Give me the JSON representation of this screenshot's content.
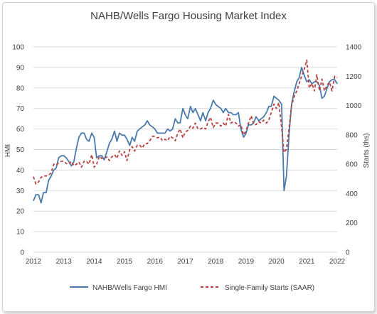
{
  "chart_data": {
    "type": "line",
    "title": "NAHB/Wells Fargo Housing Market Index",
    "ylabel": "HMI",
    "y2label": "Starts (ths)",
    "xlabel": "",
    "xlim": [
      2012,
      2022
    ],
    "ylim": [
      0,
      100
    ],
    "y2lim": [
      0,
      1400
    ],
    "x_ticks": [
      "2012",
      "2013",
      "2014",
      "2015",
      "2016",
      "2017",
      "2018",
      "2019",
      "2020",
      "2021",
      "2022"
    ],
    "y_ticks": [
      "0",
      "10",
      "20",
      "30",
      "40",
      "50",
      "60",
      "70",
      "80",
      "90",
      "100"
    ],
    "y2_ticks": [
      "0",
      "200",
      "400",
      "600",
      "800",
      "1000",
      "1200",
      "1400"
    ],
    "grid": true,
    "legend_position": "bottom",
    "series": [
      {
        "name": "NAHB/Wells Fargo HMI",
        "axis": "left",
        "color": "#4a7aad",
        "style": "solid",
        "x": [
          2012.0,
          2012.08,
          2012.17,
          2012.25,
          2012.33,
          2012.42,
          2012.5,
          2012.58,
          2012.67,
          2012.75,
          2012.83,
          2012.92,
          2013.0,
          2013.08,
          2013.17,
          2013.25,
          2013.33,
          2013.42,
          2013.5,
          2013.58,
          2013.67,
          2013.75,
          2013.83,
          2013.92,
          2014.0,
          2014.08,
          2014.17,
          2014.25,
          2014.33,
          2014.42,
          2014.5,
          2014.58,
          2014.67,
          2014.75,
          2014.83,
          2014.92,
          2015.0,
          2015.08,
          2015.17,
          2015.25,
          2015.33,
          2015.42,
          2015.5,
          2015.58,
          2015.67,
          2015.75,
          2015.83,
          2015.92,
          2016.0,
          2016.08,
          2016.17,
          2016.25,
          2016.33,
          2016.42,
          2016.5,
          2016.58,
          2016.67,
          2016.75,
          2016.83,
          2016.92,
          2017.0,
          2017.08,
          2017.17,
          2017.25,
          2017.33,
          2017.42,
          2017.5,
          2017.58,
          2017.67,
          2017.75,
          2017.83,
          2017.92,
          2018.0,
          2018.08,
          2018.17,
          2018.25,
          2018.33,
          2018.42,
          2018.5,
          2018.58,
          2018.67,
          2018.75,
          2018.83,
          2018.92,
          2019.0,
          2019.08,
          2019.17,
          2019.25,
          2019.33,
          2019.42,
          2019.5,
          2019.58,
          2019.67,
          2019.75,
          2019.83,
          2019.92,
          2020.0,
          2020.08,
          2020.17,
          2020.25,
          2020.33,
          2020.42,
          2020.5,
          2020.58,
          2020.67,
          2020.75,
          2020.83,
          2020.92,
          2021.0,
          2021.08,
          2021.17,
          2021.25,
          2021.33,
          2021.42,
          2021.5,
          2021.58,
          2021.67,
          2021.75,
          2021.83,
          2021.92,
          2022.0
        ],
        "values": [
          25,
          28,
          28,
          24,
          29,
          29,
          35,
          37,
          40,
          41,
          46,
          47,
          47,
          46,
          44,
          42,
          44,
          51,
          56,
          58,
          58,
          55,
          54,
          58,
          56,
          46,
          47,
          47,
          45,
          49,
          53,
          55,
          59,
          54,
          58,
          57,
          57,
          55,
          52,
          56,
          54,
          59,
          60,
          61,
          62,
          64,
          62,
          61,
          60,
          58,
          58,
          58,
          58,
          60,
          59,
          60,
          65,
          63,
          63,
          70,
          67,
          65,
          71,
          68,
          70,
          67,
          64,
          68,
          64,
          68,
          70,
          74,
          72,
          71,
          70,
          68,
          70,
          68,
          68,
          67,
          67,
          68,
          60,
          56,
          58,
          62,
          62,
          63,
          66,
          64,
          65,
          66,
          68,
          71,
          71,
          76,
          75,
          74,
          72,
          30,
          37,
          58,
          72,
          78,
          83,
          85,
          90,
          86,
          83,
          84,
          82,
          83,
          83,
          81,
          75,
          76,
          80,
          83,
          84,
          84,
          82
        ]
      },
      {
        "name": "Single-Family Starts (SAAR)",
        "axis": "right",
        "color": "#b8413f",
        "style": "dashed",
        "x": [
          2012.0,
          2012.08,
          2012.17,
          2012.25,
          2012.33,
          2012.42,
          2012.5,
          2012.58,
          2012.67,
          2012.75,
          2012.83,
          2012.92,
          2013.0,
          2013.08,
          2013.17,
          2013.25,
          2013.33,
          2013.42,
          2013.5,
          2013.58,
          2013.67,
          2013.75,
          2013.83,
          2013.92,
          2014.0,
          2014.08,
          2014.17,
          2014.25,
          2014.33,
          2014.42,
          2014.5,
          2014.58,
          2014.67,
          2014.75,
          2014.83,
          2014.92,
          2015.0,
          2015.08,
          2015.17,
          2015.25,
          2015.33,
          2015.42,
          2015.5,
          2015.58,
          2015.67,
          2015.75,
          2015.83,
          2015.92,
          2016.0,
          2016.08,
          2016.17,
          2016.25,
          2016.33,
          2016.42,
          2016.5,
          2016.58,
          2016.67,
          2016.75,
          2016.83,
          2016.92,
          2017.0,
          2017.08,
          2017.17,
          2017.25,
          2017.33,
          2017.42,
          2017.5,
          2017.58,
          2017.67,
          2017.75,
          2017.83,
          2017.92,
          2018.0,
          2018.08,
          2018.17,
          2018.25,
          2018.33,
          2018.42,
          2018.5,
          2018.58,
          2018.67,
          2018.75,
          2018.83,
          2018.92,
          2019.0,
          2019.08,
          2019.17,
          2019.25,
          2019.33,
          2019.42,
          2019.5,
          2019.58,
          2019.67,
          2019.75,
          2019.83,
          2019.92,
          2020.0,
          2020.08,
          2020.17,
          2020.25,
          2020.33,
          2020.42,
          2020.5,
          2020.58,
          2020.67,
          2020.75,
          2020.83,
          2020.92,
          2021.0,
          2021.08,
          2021.17,
          2021.25,
          2021.33,
          2021.42,
          2021.5,
          2021.58,
          2021.67,
          2021.75,
          2021.83,
          2021.92,
          2022.0
        ],
        "values": [
          515,
          465,
          480,
          510,
          520,
          520,
          525,
          540,
          600,
          595,
          610,
          620,
          620,
          605,
          600,
          620,
          590,
          600,
          615,
          580,
          620,
          620,
          600,
          665,
          580,
          600,
          655,
          640,
          640,
          650,
          625,
          650,
          665,
          640,
          690,
          660,
          685,
          625,
          700,
          720,
          690,
          730,
          730,
          710,
          740,
          740,
          760,
          790,
          790,
          780,
          785,
          760,
          770,
          760,
          790,
          780,
          760,
          810,
          840,
          780,
          820,
          830,
          860,
          845,
          880,
          840,
          840,
          850,
          840,
          890,
          920,
          850,
          880,
          880,
          860,
          880,
          860,
          940,
          880,
          890,
          880,
          860,
          870,
          800,
          830,
          880,
          930,
          870,
          870,
          890,
          880,
          900,
          880,
          900,
          950,
          1010,
          980,
          1020,
          850,
          680,
          700,
          850,
          1000,
          1060,
          1100,
          1150,
          1200,
          1250,
          1310,
          1120,
          1150,
          1100,
          1210,
          1100,
          1180,
          1100,
          1140,
          1160,
          1100,
          1200,
          1190
        ]
      }
    ]
  }
}
